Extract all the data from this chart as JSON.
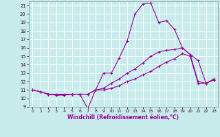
{
  "xlabel": "Windchill (Refroidissement éolien,°C)",
  "background_color": "#c8ecec",
  "line_color": "#990099",
  "grid_color": "#ffffff",
  "xlim": [
    -0.5,
    23.5
  ],
  "ylim": [
    9,
    21.5
  ],
  "xticks": [
    0,
    1,
    2,
    3,
    4,
    5,
    6,
    7,
    8,
    9,
    10,
    11,
    12,
    13,
    14,
    15,
    16,
    17,
    18,
    19,
    20,
    21,
    22,
    23
  ],
  "yticks": [
    9,
    10,
    11,
    12,
    13,
    14,
    15,
    16,
    17,
    18,
    19,
    20,
    21
  ],
  "hours": [
    0,
    1,
    2,
    3,
    4,
    5,
    6,
    7,
    8,
    9,
    10,
    11,
    12,
    13,
    14,
    15,
    16,
    17,
    18,
    19,
    20,
    21,
    22,
    23
  ],
  "line1": [
    11.0,
    10.8,
    10.5,
    10.5,
    10.5,
    10.5,
    10.5,
    8.8,
    11.0,
    13.0,
    13.0,
    14.8,
    16.8,
    20.0,
    21.2,
    21.3,
    19.0,
    19.2,
    18.2,
    16.0,
    15.2,
    14.5,
    11.8,
    12.2
  ],
  "line2": [
    11.0,
    10.8,
    10.5,
    10.4,
    10.4,
    10.5,
    10.5,
    10.5,
    11.0,
    11.2,
    11.8,
    12.3,
    13.0,
    13.5,
    14.2,
    15.0,
    15.5,
    15.7,
    15.8,
    16.0,
    15.2,
    12.0,
    11.8,
    12.2
  ],
  "line3": [
    11.0,
    10.8,
    10.5,
    10.4,
    10.4,
    10.5,
    10.5,
    10.5,
    11.0,
    11.0,
    11.2,
    11.5,
    12.0,
    12.3,
    12.8,
    13.2,
    13.8,
    14.3,
    14.7,
    15.3,
    15.0,
    11.8,
    11.8,
    12.3
  ]
}
